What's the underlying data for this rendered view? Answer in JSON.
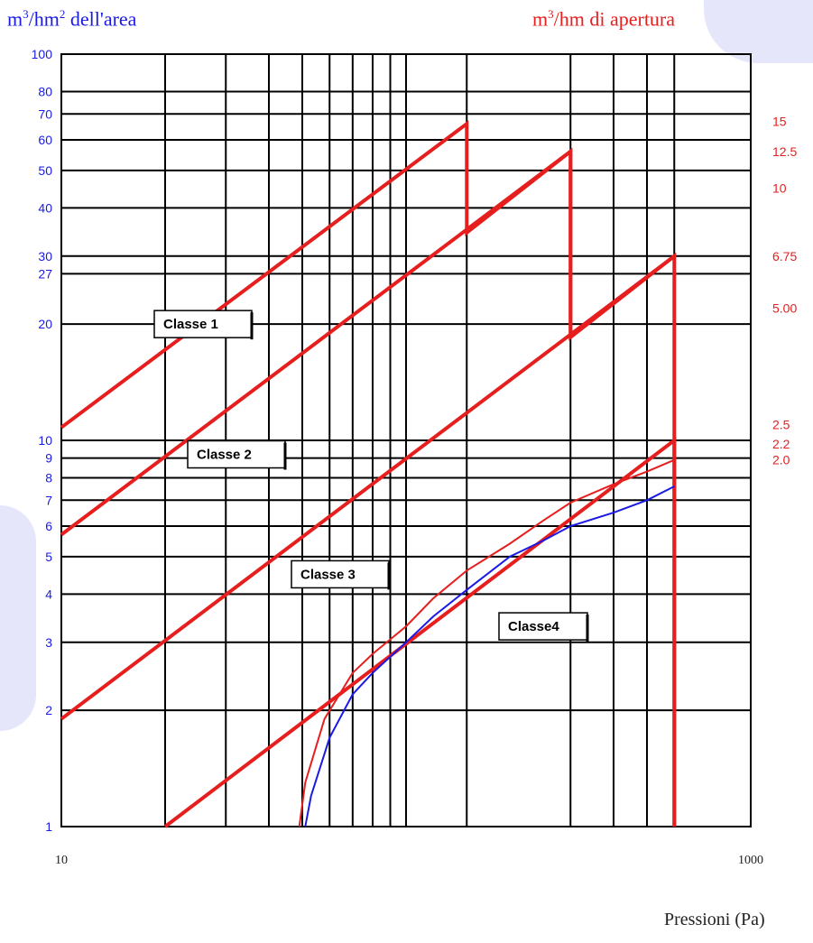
{
  "header": {
    "left_axis_unit": "m",
    "left_axis_unit_sup": "3",
    "left_axis_unit_rest": "/hm",
    "left_axis_unit_sup2": "2",
    "left_axis_unit_tail": " dell'area",
    "right_axis_unit": "m",
    "right_axis_unit_sup": "3",
    "right_axis_unit_tail": "/hm di apertura"
  },
  "colors": {
    "left_axis": "#1a1ae6",
    "right_axis": "#e61e1e",
    "class_lines": "#e61e1e",
    "blue_curve": "#1a1ae6",
    "grid": "#000000"
  },
  "chart_data": {
    "type": "line",
    "xlabel": "Pressioni (Pa)",
    "x_scale": "log",
    "y_scale": "log",
    "xlim": [
      10,
      1000
    ],
    "ylim": [
      1,
      100
    ],
    "x_tick_labels": [
      "10",
      "1000"
    ],
    "x_gridlines": [
      20,
      30,
      40,
      50,
      60,
      70,
      80,
      90,
      100,
      150,
      300,
      400,
      500,
      600
    ],
    "y_left_tick_labels": [
      "1",
      "2",
      "3",
      "4",
      "5",
      "6",
      "7",
      "8",
      "9",
      "10",
      "20",
      "27",
      "30",
      "40",
      "50",
      "60",
      "70",
      "80",
      "100"
    ],
    "y_left_tick_values": [
      1,
      2,
      3,
      4,
      5,
      6,
      7,
      8,
      9,
      10,
      20,
      27,
      30,
      40,
      50,
      60,
      70,
      80,
      100
    ],
    "y_right_ticks": [
      {
        "label": "15",
        "y": 67
      },
      {
        "label": "12.5",
        "y": 56
      },
      {
        "label": "10",
        "y": 45
      },
      {
        "label": "6.75",
        "y": 30
      },
      {
        "label": "5.00",
        "y": 22
      },
      {
        "label": "2.5",
        "y": 11
      },
      {
        "label": "2.2",
        "y": 9.8
      },
      {
        "label": "2.0",
        "y": 8.9
      }
    ],
    "grid": true,
    "series": [
      {
        "name": "Classe 1",
        "points": [
          [
            10,
            10.8
          ],
          [
            150,
            66
          ],
          [
            150,
            34.5
          ],
          [
            300,
            56
          ],
          [
            300,
            18.5
          ]
        ]
      },
      {
        "name": "Classe 2",
        "points": [
          [
            10,
            5.7
          ],
          [
            300,
            56
          ],
          [
            300,
            18.5
          ],
          [
            600,
            30
          ],
          [
            600,
            1
          ]
        ]
      },
      {
        "name": "Classe 3",
        "points": [
          [
            10,
            1.9
          ],
          [
            600,
            30
          ]
        ]
      },
      {
        "name": "Classe4",
        "points": [
          [
            20,
            1
          ],
          [
            600,
            10
          ],
          [
            600,
            1
          ]
        ]
      },
      {
        "name": "",
        "points": [
          [
            51,
            1
          ],
          [
            53,
            1.2
          ],
          [
            60,
            1.7
          ],
          [
            70,
            2.2
          ],
          [
            80,
            2.5
          ],
          [
            100,
            3
          ],
          [
            120,
            3.5
          ],
          [
            150,
            4.1
          ],
          [
            200,
            5
          ],
          [
            250,
            5.5
          ],
          [
            300,
            6
          ],
          [
            400,
            6.5
          ],
          [
            500,
            7
          ],
          [
            600,
            7.6
          ]
        ]
      },
      {
        "name": "",
        "points": [
          [
            49,
            1
          ],
          [
            51,
            1.3
          ],
          [
            58,
            1.9
          ],
          [
            70,
            2.5
          ],
          [
            80,
            2.8
          ],
          [
            100,
            3.3
          ],
          [
            120,
            3.9
          ],
          [
            150,
            4.6
          ],
          [
            200,
            5.4
          ],
          [
            250,
            6.2
          ],
          [
            300,
            6.9
          ],
          [
            400,
            7.7
          ],
          [
            500,
            8.3
          ],
          [
            600,
            8.9
          ]
        ]
      }
    ],
    "series_styles": [
      {
        "color": "#e61e1e",
        "width": 4
      },
      {
        "color": "#e61e1e",
        "width": 4
      },
      {
        "color": "#e61e1e",
        "width": 4
      },
      {
        "color": "#e61e1e",
        "width": 4
      },
      {
        "color": "#1a1ae6",
        "width": 2
      },
      {
        "color": "#e61e1e",
        "width": 2
      }
    ],
    "annotations": [
      {
        "text": "Classe 1",
        "x": 20,
        "y": 20
      },
      {
        "text": "Classe 2",
        "x": 25,
        "y": 9.2
      },
      {
        "text": "Classe 3",
        "x": 50,
        "y": 4.5
      },
      {
        "text": "Classe4",
        "x": 200,
        "y": 3.3
      }
    ]
  }
}
